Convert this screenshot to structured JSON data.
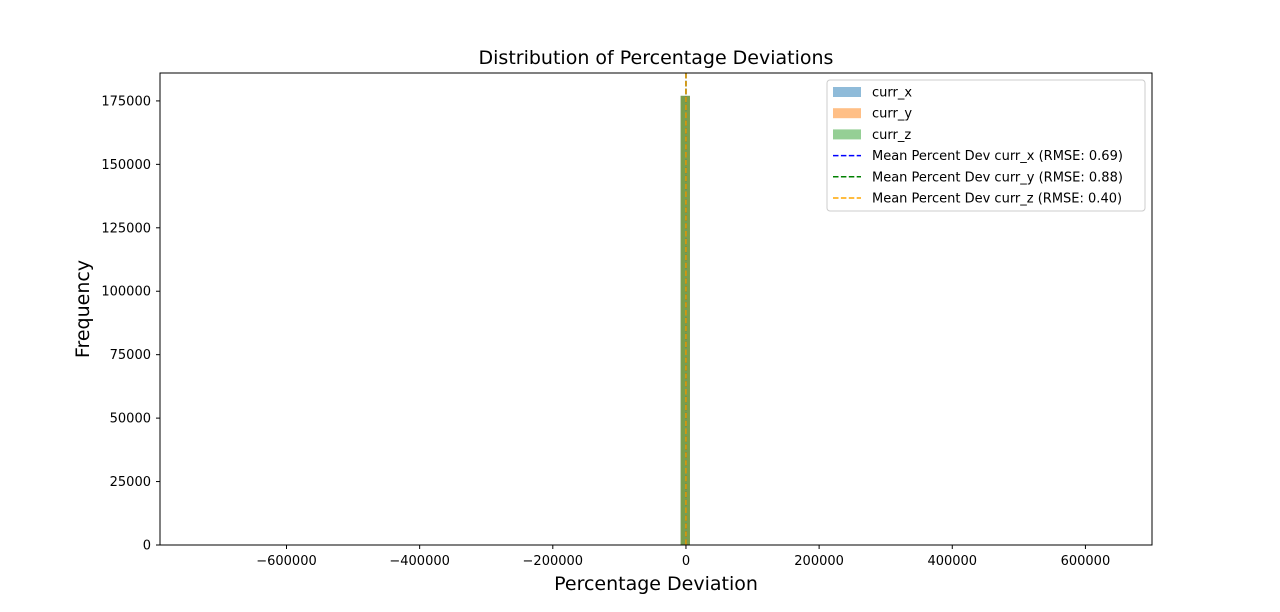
{
  "chart_data": {
    "type": "histogram",
    "title": "Distribution of Percentage Deviations",
    "xlabel": "Percentage Deviation",
    "ylabel": "Frequency",
    "xlim": [
      -790000,
      700000
    ],
    "ylim": [
      0,
      186000
    ],
    "x_ticks": [
      {
        "value": -600000,
        "label": "−600000"
      },
      {
        "value": -400000,
        "label": "−400000"
      },
      {
        "value": -200000,
        "label": "−200000"
      },
      {
        "value": 0,
        "label": "0"
      },
      {
        "value": 200000,
        "label": "200000"
      },
      {
        "value": 400000,
        "label": "400000"
      },
      {
        "value": 600000,
        "label": "600000"
      }
    ],
    "y_ticks": [
      {
        "value": 0,
        "label": "0"
      },
      {
        "value": 25000,
        "label": "25000"
      },
      {
        "value": 50000,
        "label": "50000"
      },
      {
        "value": 75000,
        "label": "75000"
      },
      {
        "value": 100000,
        "label": "100000"
      },
      {
        "value": 125000,
        "label": "125000"
      },
      {
        "value": 150000,
        "label": "150000"
      },
      {
        "value": 175000,
        "label": "175000"
      }
    ],
    "grid": false,
    "legend_position": "upper right",
    "series": [
      {
        "name": "curr_x",
        "color": "#1f77b4",
        "opacity": 0.5,
        "bins": [
          {
            "x0": -8000,
            "x1": 6000,
            "count": 177000
          }
        ]
      },
      {
        "name": "curr_y",
        "color": "#ff7f0e",
        "opacity": 0.5,
        "bins": [
          {
            "x0": -8000,
            "x1": 6000,
            "count": 177000
          }
        ]
      },
      {
        "name": "curr_z",
        "color": "#2ca02c",
        "opacity": 0.5,
        "bins": [
          {
            "x0": -8000,
            "x1": 6000,
            "count": 177000
          }
        ]
      }
    ],
    "mean_lines": [
      {
        "name": "Mean Percent Dev curr_x (RMSE: 0.69)",
        "x": 0,
        "color": "#0000ff"
      },
      {
        "name": "Mean Percent Dev curr_y (RMSE: 0.88)",
        "x": 0,
        "color": "#008000"
      },
      {
        "name": "Mean Percent Dev curr_z (RMSE: 0.40)",
        "x": 0,
        "color": "#ffa500"
      }
    ]
  }
}
